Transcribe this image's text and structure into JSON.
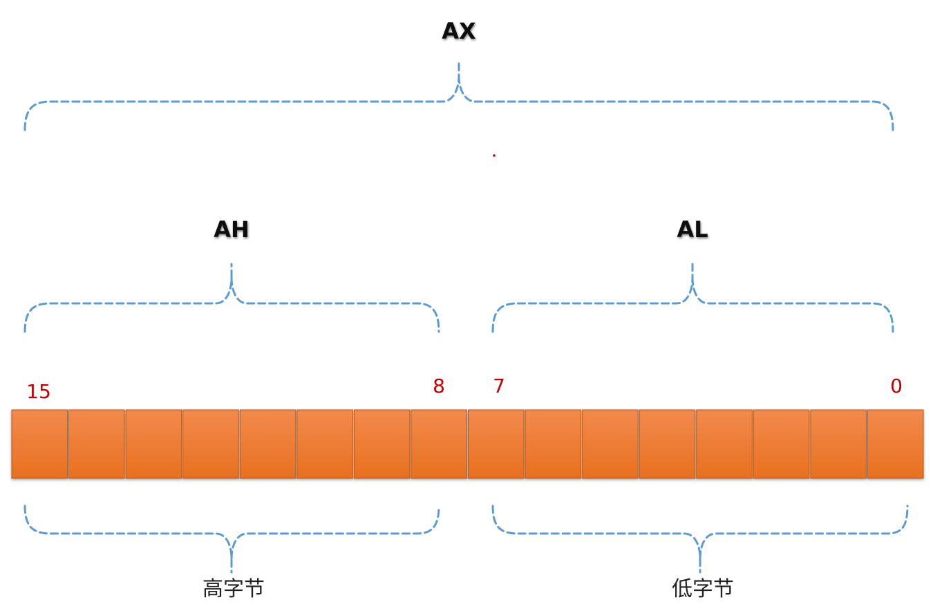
{
  "diagram": {
    "register_labels": {
      "ax": "AX",
      "ah": "AH",
      "al": "AL"
    },
    "bit_labels": {
      "b15": "15",
      "b8": "8",
      "b7": "7",
      "b0": "0"
    },
    "byte_labels": {
      "high": "高字节",
      "low": "低字节"
    },
    "bit_count": 16,
    "colors": {
      "cell_top": "#f28a4c",
      "cell_bottom": "#e8701f",
      "brace": "#5b9bd5",
      "bit_label": "#c00000"
    }
  }
}
